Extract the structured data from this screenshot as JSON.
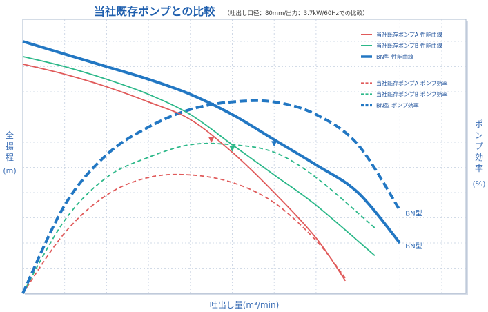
{
  "header": {
    "title": "当社既存ポンプとの比較",
    "subtitle": "（吐出し口径：80mm/出力：3.7kW/60Hzでの比較）"
  },
  "colors": {
    "existing_a": "#e05a5a",
    "existing_b": "#2cb889",
    "bn": "#2277c3",
    "grid": "#c4cfe0",
    "frame": "#aab8cc"
  },
  "chart_data": {
    "type": "line",
    "title": "当社既存ポンプとの比較",
    "xlabel": "吐出し量(m³/min)",
    "ylabel": "全揚程(m)",
    "y2label": "ポンプ効率(%)",
    "xlim": [
      0,
      10
    ],
    "ylim": [
      0,
      10
    ],
    "y2lim": [
      0,
      10
    ],
    "grid": true,
    "tick_labels": false,
    "legend_position": "top-right",
    "series": [
      {
        "name": "当社既存ポンプA 性能曲線",
        "kind": "head",
        "axis": "left",
        "dash": false,
        "color_key": "existing_a",
        "x": [
          0,
          1,
          2,
          3,
          4,
          5,
          6,
          7,
          7.7
        ],
        "y": [
          9.1,
          8.7,
          8.2,
          7.6,
          6.9,
          5.6,
          4.0,
          2.2,
          0.5
        ]
      },
      {
        "name": "当社既存ポンプB 性能曲線",
        "kind": "head",
        "axis": "left",
        "dash": false,
        "color_key": "existing_b",
        "x": [
          0,
          1,
          2,
          3,
          4,
          5,
          6,
          7,
          8.4
        ],
        "y": [
          9.4,
          9.0,
          8.5,
          7.9,
          7.1,
          5.9,
          4.7,
          3.5,
          1.5
        ]
      },
      {
        "name": "BN型 性能曲線",
        "kind": "head",
        "axis": "left",
        "dash": false,
        "color_key": "bn",
        "x": [
          0,
          1,
          2,
          3,
          4,
          5,
          6,
          7,
          8,
          9
        ],
        "y": [
          10.0,
          9.5,
          9.0,
          8.5,
          7.9,
          7.1,
          6.1,
          5.1,
          4.0,
          2.0
        ]
      },
      {
        "name": "当社既存ポンプA ポンプ効率",
        "kind": "efficiency",
        "axis": "right",
        "dash": true,
        "color_key": "existing_a",
        "x": [
          0,
          1,
          2,
          3,
          4,
          5,
          6,
          7,
          7.7
        ],
        "y": [
          0,
          2.4,
          3.9,
          4.6,
          4.7,
          4.4,
          3.6,
          2.1,
          0.6
        ]
      },
      {
        "name": "当社既存ポンプB ポンプ効率",
        "kind": "efficiency",
        "axis": "right",
        "dash": true,
        "color_key": "existing_b",
        "x": [
          0,
          1,
          2,
          3,
          4,
          5,
          6,
          7,
          8.4
        ],
        "y": [
          0,
          2.9,
          4.6,
          5.4,
          5.9,
          5.9,
          5.6,
          4.6,
          2.6
        ]
      },
      {
        "name": "BN型 ポンプ効率",
        "kind": "efficiency",
        "axis": "right",
        "dash": true,
        "color_key": "bn",
        "x": [
          0,
          1,
          2,
          3,
          4,
          5,
          6,
          7,
          8,
          9
        ],
        "y": [
          0,
          3.5,
          5.5,
          6.6,
          7.3,
          7.6,
          7.6,
          7.1,
          5.9,
          3.3
        ]
      }
    ],
    "markers": [
      {
        "series": 0,
        "x": 4.5
      },
      {
        "series": 1,
        "x": 5.0
      },
      {
        "series": 2,
        "x": 6.0
      }
    ],
    "end_labels": [
      {
        "series": 5,
        "text": "BN型"
      },
      {
        "series": 2,
        "text": "BN型"
      }
    ]
  }
}
